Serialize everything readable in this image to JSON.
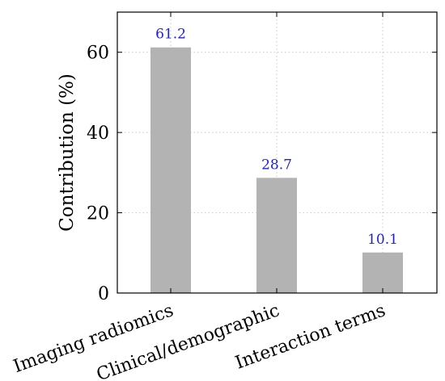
{
  "chart_data": {
    "type": "bar",
    "categories": [
      "Imaging radiomics",
      "Clinical/demographic",
      "Interaction terms"
    ],
    "values": [
      61.2,
      28.7,
      10.1
    ],
    "data_labels": [
      "61.2",
      "28.7",
      "10.1"
    ],
    "ylabel": "Contribution (%)",
    "ylim": [
      0,
      70
    ],
    "yticks": [
      0,
      20,
      40,
      60
    ],
    "ytick_labels": [
      "0",
      "20",
      "40",
      "60"
    ],
    "grid": true,
    "bar_color": "#b3b3b3",
    "label_color": "#1f1fd6"
  }
}
